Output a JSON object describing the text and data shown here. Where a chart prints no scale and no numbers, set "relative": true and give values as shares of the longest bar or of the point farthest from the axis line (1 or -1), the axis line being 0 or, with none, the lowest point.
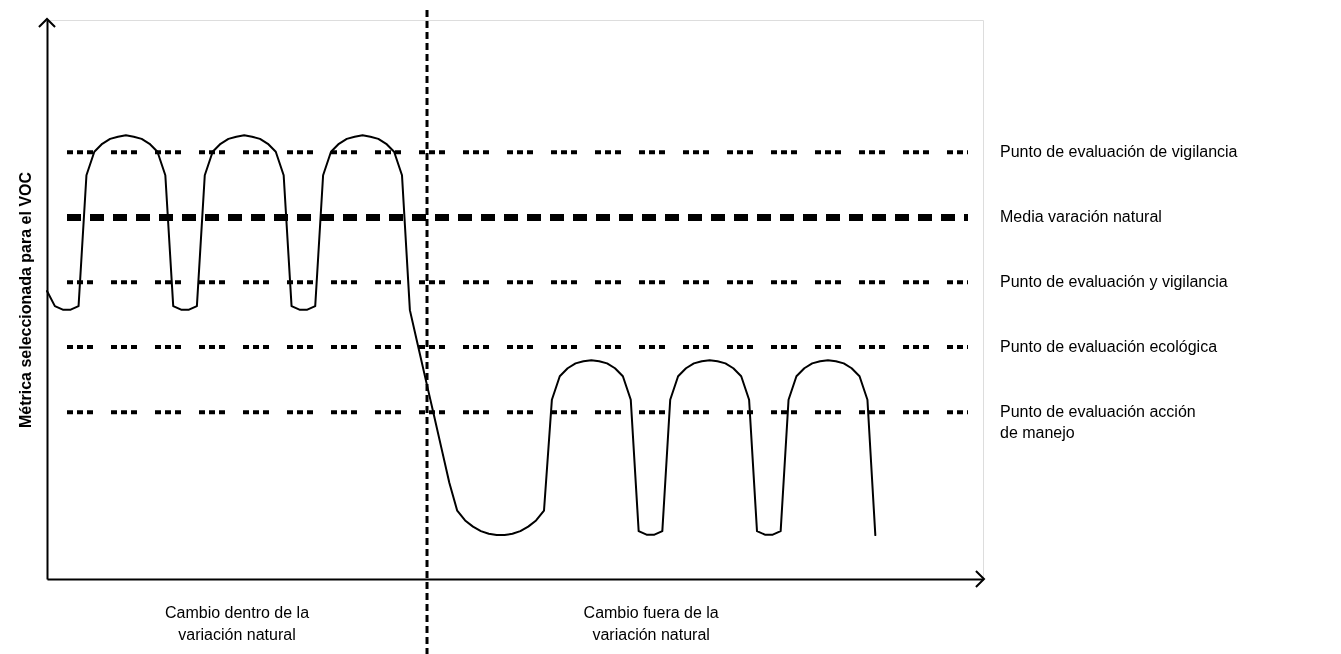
{
  "chart_data": {
    "type": "line",
    "relative": true,
    "ylabel": "Métrica seleccionada para el VOC",
    "line_style": "solid",
    "marker": "none",
    "categories": [
      null,
      null,
      null,
      null,
      null,
      null,
      null,
      null,
      null,
      null,
      null,
      null,
      null,
      null,
      null,
      null,
      null,
      null,
      null,
      null,
      null,
      null,
      null,
      null,
      null,
      null,
      null,
      null,
      null,
      null,
      null,
      null,
      null,
      null,
      null,
      null,
      null,
      null,
      null,
      null,
      null,
      null,
      null,
      null,
      null,
      null,
      null,
      null,
      null,
      null,
      null,
      null,
      null,
      null,
      null,
      null,
      null,
      null,
      null,
      null,
      null,
      null,
      null,
      null,
      null,
      null,
      null,
      null,
      null,
      null,
      null,
      null,
      null,
      null,
      null,
      null,
      null,
      null,
      null,
      null,
      null,
      null,
      null,
      null,
      null,
      null,
      null,
      null,
      null,
      null,
      null,
      null,
      null,
      null,
      null,
      null,
      null,
      null,
      null,
      null,
      null,
      null,
      null,
      null,
      null,
      null
    ],
    "series": [
      {
        "color": "#000000",
        "values": [
          0.649,
          0.615,
          0.607,
          0.607,
          0.615,
          0.91,
          0.963,
          0.981,
          0.992,
          0.997,
          1,
          0.997,
          0.992,
          0.981,
          0.963,
          0.91,
          0.615,
          0.607,
          0.607,
          0.615,
          0.91,
          0.963,
          0.981,
          0.992,
          0.997,
          1,
          0.997,
          0.992,
          0.981,
          0.963,
          0.91,
          0.615,
          0.607,
          0.607,
          0.615,
          0.91,
          0.963,
          0.981,
          0.992,
          0.997,
          1,
          0.997,
          0.992,
          0.981,
          0.963,
          0.91,
          0.606,
          0.528,
          0.45,
          0.373,
          0.295,
          0.217,
          0.154,
          0.132,
          0.118,
          0.108,
          0.102,
          0.099,
          0.099,
          0.102,
          0.108,
          0.118,
          0.132,
          0.154,
          0.404,
          0.457,
          0.475,
          0.486,
          0.491,
          0.493,
          0.491,
          0.486,
          0.475,
          0.457,
          0.404,
          0.108,
          0.1,
          0.1,
          0.108,
          0.404,
          0.457,
          0.475,
          0.486,
          0.491,
          0.493,
          0.491,
          0.486,
          0.475,
          0.457,
          0.404,
          0.108,
          0.1,
          0.1,
          0.108,
          0.404,
          0.457,
          0.475,
          0.486,
          0.491,
          0.493,
          0.491,
          0.486,
          0.475,
          0.457,
          0.404,
          0.099
        ]
      }
    ],
    "ref_lines": [
      {
        "axis": "y",
        "value": 0.962,
        "label": "Punto de evaluación de vigilancia",
        "line_style": "dotted",
        "color": "#000000"
      },
      {
        "axis": "y",
        "value": 0.815,
        "label": "Media varación natural",
        "line_style": "dashed",
        "color": "#000000"
      },
      {
        "axis": "y",
        "value": 0.669,
        "label": "Punto de evaluación y vigilancia",
        "line_style": "dotted",
        "color": "#000000"
      },
      {
        "axis": "y",
        "value": 0.523,
        "label": "Punto de evaluación ecológica",
        "line_style": "dotted",
        "color": "#000000"
      },
      {
        "axis": "y",
        "value": 0.376,
        "label": "Punto de evaluación acción\nde manejo",
        "line_style": "dotted",
        "color": "#000000"
      }
    ],
    "annotations": [
      "Cambio dentro de la\nvariación natural",
      "Cambio fuera de la\nvariación natural"
    ]
  }
}
